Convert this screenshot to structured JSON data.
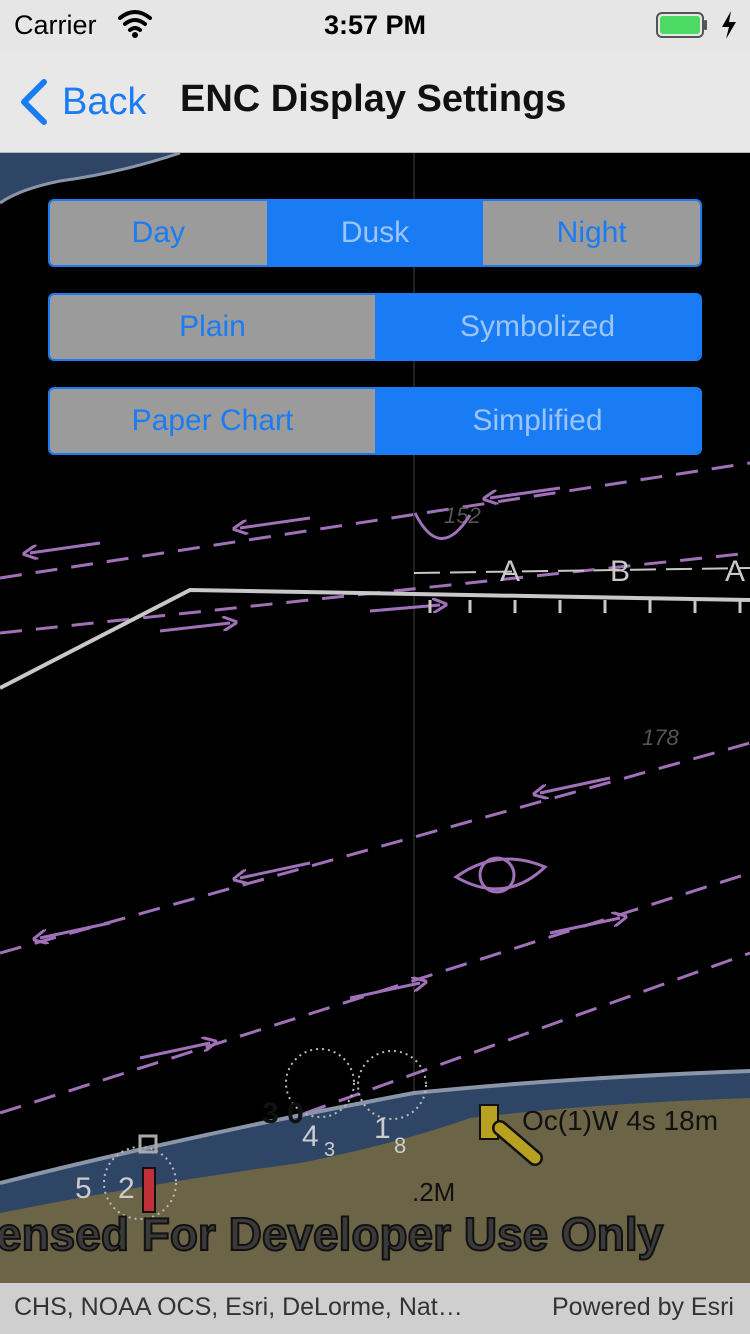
{
  "status_bar": {
    "carrier": "Carrier",
    "time": "3:57 PM",
    "battery_color": "#4cd964"
  },
  "nav": {
    "back_label": "Back",
    "title": "ENC Display Settings",
    "accent": "#1a7cf5"
  },
  "settings": {
    "color_scheme": {
      "options": [
        "Day",
        "Dusk",
        "Night"
      ],
      "selected": "Dusk"
    },
    "area_symbolization": {
      "options": [
        "Plain",
        "Symbolized"
      ],
      "selected": "Symbolized"
    },
    "point_symbolization": {
      "options": [
        "Paper Chart",
        "Simplified"
      ],
      "selected": "Simplified"
    }
  },
  "map": {
    "soundings": [
      "152",
      "178",
      "3 0",
      "4",
      "3",
      "1",
      "8",
      "5",
      "2"
    ],
    "light_label": "Oc(1)W 4s 18m",
    "distance_label": ".2M",
    "watermark": "ensed For Developer Use Only",
    "lane_letters": [
      "A",
      "B",
      "A"
    ]
  },
  "footer": {
    "attribution": "CHS, NOAA OCS, Esri, DeLorme, Nat…",
    "powered_by": "Powered by Esri"
  }
}
